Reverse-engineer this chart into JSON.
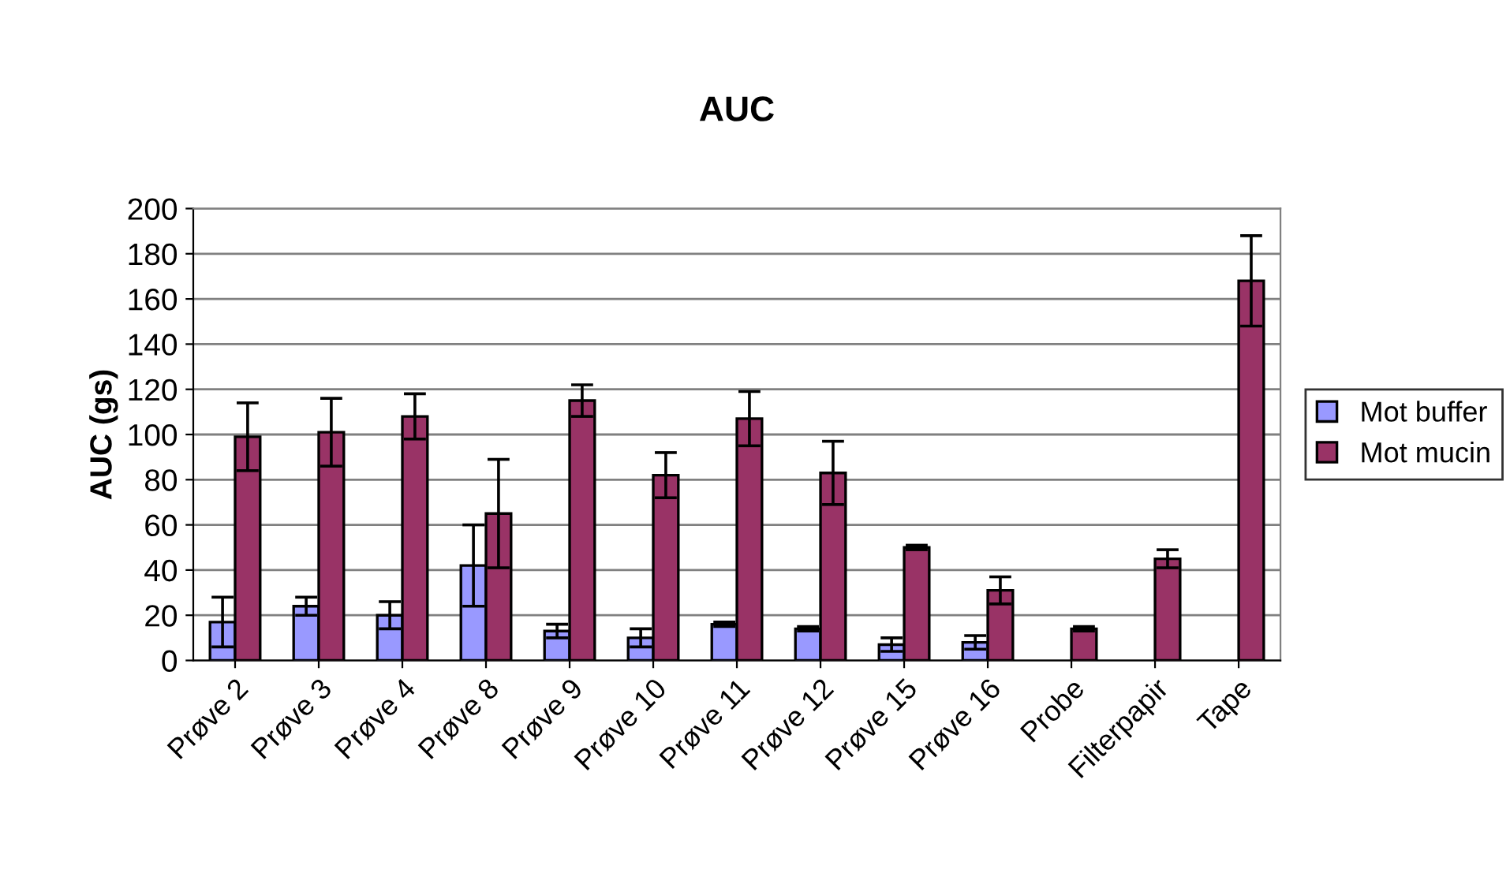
{
  "chart_data": {
    "type": "bar",
    "title": "AUC",
    "ylabel": "AUC (gs)",
    "categories": [
      "Prøve 2",
      "Prøve 3",
      "Prøve 4",
      "Prøve 8",
      "Prøve 9",
      "Prøve 10",
      "Prøve 11",
      "Prøve 12",
      "Prøve 15",
      "Prøve 16",
      "Probe",
      "Filterpapir",
      "Tape"
    ],
    "series": [
      {
        "name": "Mot buffer",
        "color": "#9999ff",
        "values": [
          17,
          24,
          20,
          42,
          13,
          10,
          16,
          14,
          7,
          8,
          null,
          null,
          null
        ],
        "errors": [
          11,
          4,
          6,
          18,
          3,
          4,
          1,
          1,
          3,
          3,
          null,
          null,
          null
        ]
      },
      {
        "name": "Mot mucin",
        "color": "#993366",
        "values": [
          99,
          101,
          108,
          65,
          115,
          82,
          107,
          83,
          50,
          31,
          14,
          45,
          168
        ],
        "errors": [
          15,
          15,
          10,
          24,
          7,
          10,
          12,
          14,
          1,
          6,
          1,
          4,
          20
        ]
      }
    ],
    "ylim": [
      0,
      200
    ],
    "yticks": [
      0,
      20,
      40,
      60,
      80,
      100,
      120,
      140,
      160,
      180,
      200
    ],
    "grid": "y",
    "legend": "right"
  }
}
